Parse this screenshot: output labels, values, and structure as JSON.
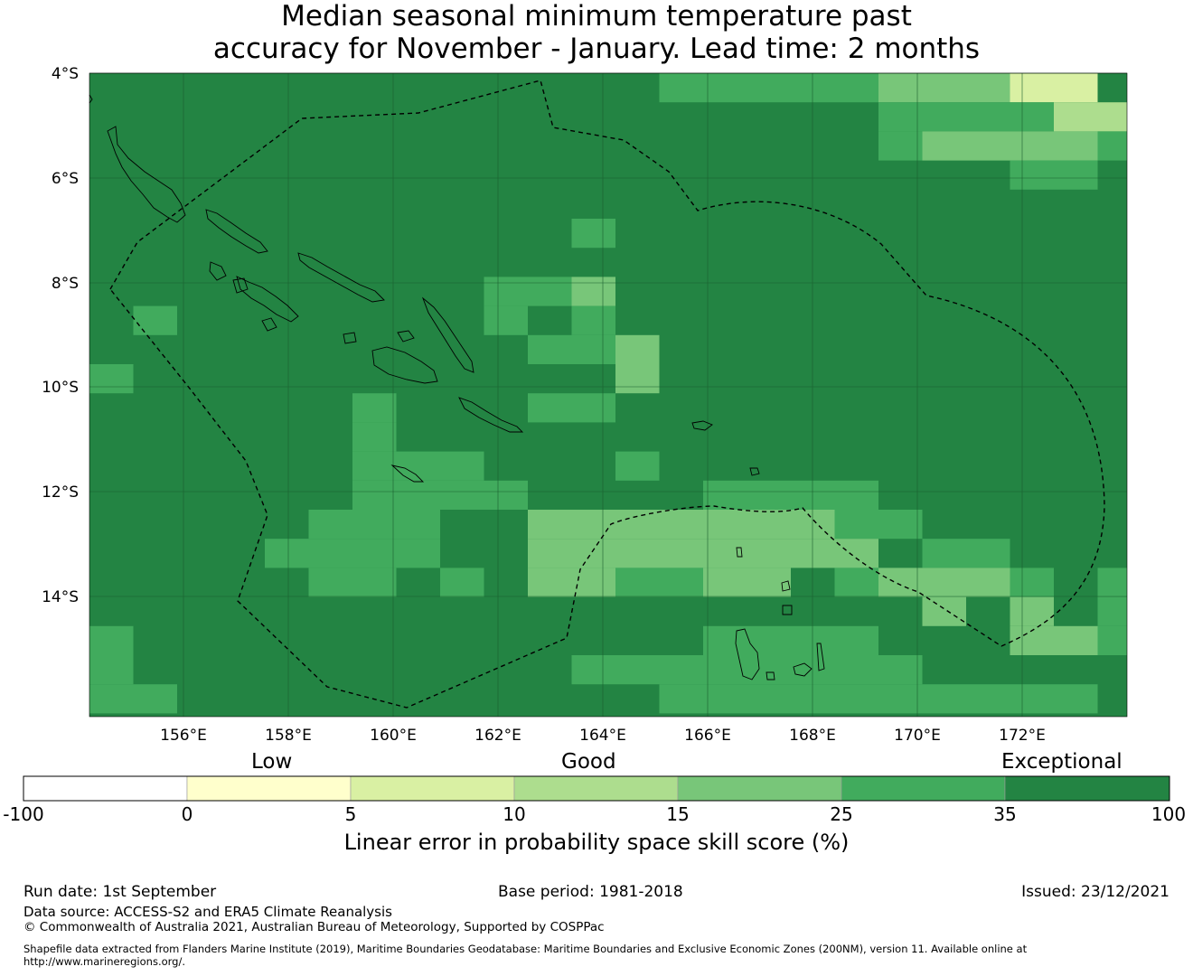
{
  "title": {
    "line1": "Median seasonal minimum temperature past",
    "line2": "accuracy for November - January. Lead time: 2 months"
  },
  "map": {
    "lat_labels": [
      "4°S",
      "6°S",
      "8°S",
      "10°S",
      "12°S",
      "14°S"
    ],
    "lon_labels": [
      "156°E",
      "158°E",
      "160°E",
      "162°E",
      "164°E",
      "166°E",
      "168°E",
      "170°E",
      "172°E"
    ],
    "lat_range": [
      -16.4,
      -4.0
    ],
    "lon_range": [
      154.2,
      174.0
    ],
    "grid_cell_deg": 0.83,
    "gridlines": true,
    "coastlines": true,
    "eez_boundary": "dashed",
    "background_category_color": "#238443"
  },
  "colorbar": {
    "categories": [
      "Low",
      "Good",
      "Exceptional"
    ],
    "ticks": [
      "-100",
      "0",
      "5",
      "10",
      "15",
      "25",
      "35",
      "100"
    ],
    "colors": [
      "#ffffff",
      "#ffffcc",
      "#d9f0a3",
      "#addd8e",
      "#78c679",
      "#41ab5d",
      "#238443"
    ],
    "label": "Linear error in probability space skill score (%)"
  },
  "footer": {
    "run_date": "Run date: 1st September",
    "base_period": "Base period: 1981-2018",
    "issued": "Issued: 23/12/2021",
    "data_source": "Data source: ACCESS-S2 and ERA5 Climate Reanalysis",
    "copyright": "© Commonwealth of Australia 2021, Australian Bureau of Meteorology, Supported by COSPPac",
    "shapefile_line1": "Shapefile data extracted from Flanders Marine Institute (2019), Maritime Boundaries Geodatabase: Maritime Boundaries and Exclusive Economic Zones (200NM), version 11. Available online at",
    "shapefile_line2": "http://www.marineregions.org/."
  }
}
